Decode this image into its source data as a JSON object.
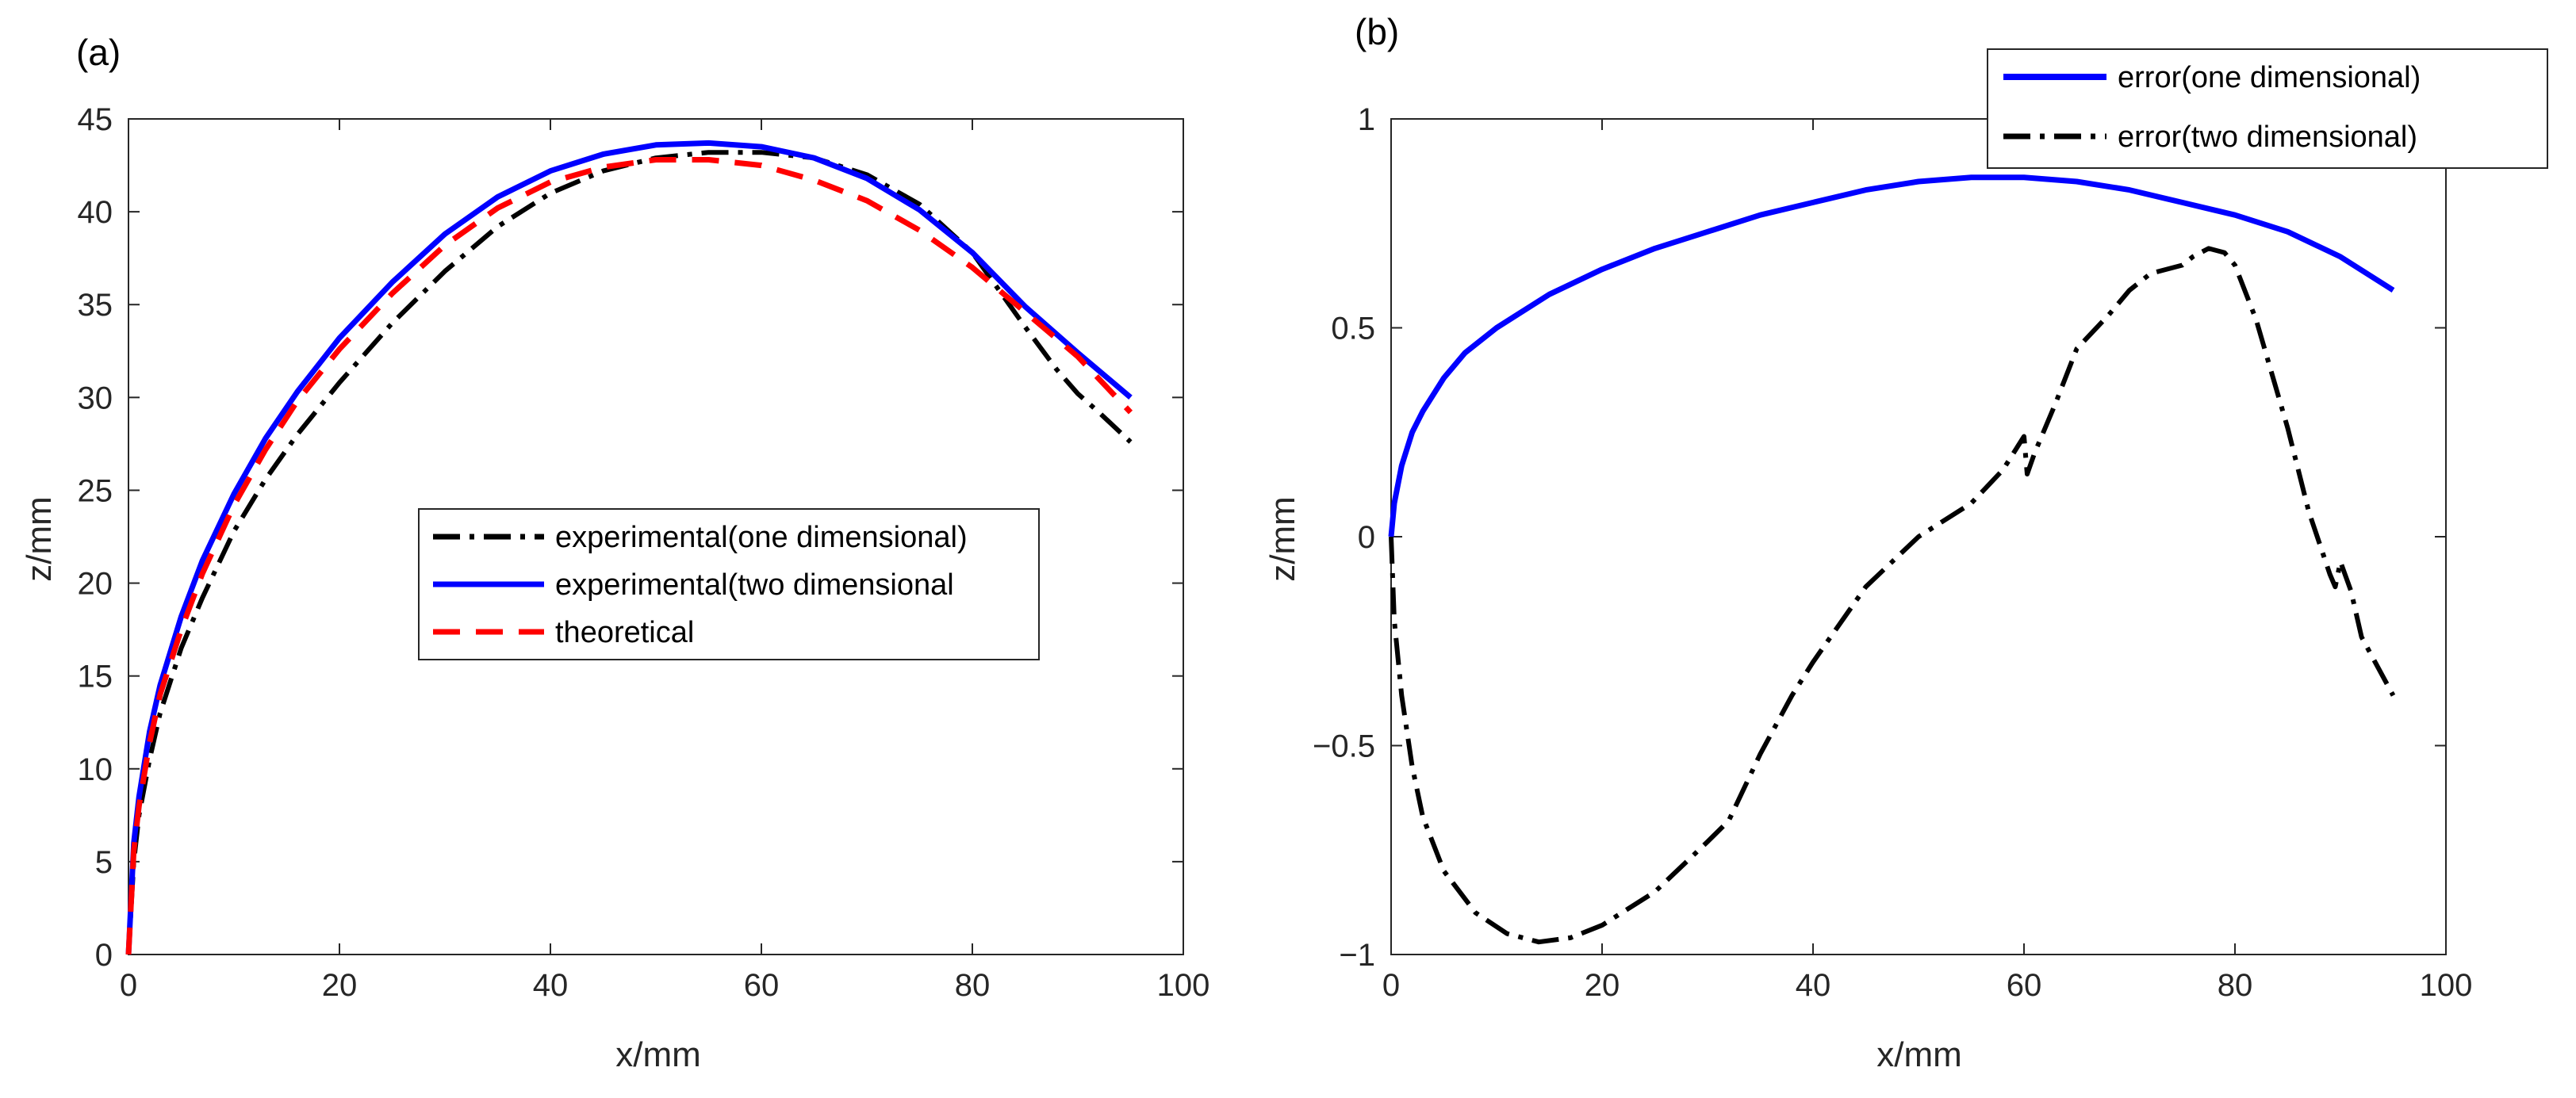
{
  "colors": {
    "blue": "#0000ff",
    "black": "#000000",
    "red": "#ff0000",
    "axis": "#262626"
  },
  "chart_data": [
    {
      "type": "line",
      "panel_label": "(a)",
      "xlabel": "x/mm",
      "ylabel": "z/mm",
      "xlim": [
        0,
        100
      ],
      "ylim": [
        0,
        45
      ],
      "xticks": [
        0,
        20,
        40,
        60,
        80,
        100
      ],
      "yticks": [
        0,
        5,
        10,
        15,
        20,
        25,
        30,
        35,
        40,
        45
      ],
      "xtick_labels": [
        "0",
        "20",
        "40",
        "60",
        "80",
        "100"
      ],
      "ytick_labels": [
        "0",
        "5",
        "10",
        "15",
        "20",
        "25",
        "30",
        "35",
        "40",
        "45"
      ],
      "legend_position": "center-right",
      "series": [
        {
          "name": "experimental(one dimensional)",
          "style": "dashdot",
          "color": "#000000",
          "x": [
            0,
            0.5,
            1,
            2,
            3,
            5,
            7,
            10,
            13,
            16,
            20,
            25,
            30,
            35,
            40,
            45,
            50,
            55,
            60,
            65,
            70,
            75,
            80,
            85,
            88,
            90,
            92,
            95
          ],
          "y": [
            0,
            5,
            7.5,
            10.5,
            13,
            16.5,
            19.2,
            22.8,
            25.6,
            28,
            30.8,
            34,
            36.8,
            39.2,
            41,
            42.2,
            42.9,
            43.2,
            43.2,
            42.9,
            42,
            40.4,
            37.8,
            33.8,
            31.5,
            30.2,
            29.2,
            27.6
          ]
        },
        {
          "name": "experimental(two dimensional",
          "style": "solid",
          "color": "#0000ff",
          "x": [
            0,
            0.5,
            1,
            2,
            3,
            5,
            7,
            10,
            13,
            16,
            20,
            25,
            30,
            35,
            40,
            45,
            50,
            55,
            60,
            65,
            70,
            75,
            80,
            85,
            90,
            95
          ],
          "y": [
            0,
            6,
            8.5,
            12,
            14.5,
            18.2,
            21.2,
            24.8,
            27.8,
            30.3,
            33.2,
            36.2,
            38.8,
            40.8,
            42.2,
            43.1,
            43.6,
            43.7,
            43.5,
            42.9,
            41.8,
            40.1,
            37.8,
            34.9,
            32.4,
            30
          ]
        },
        {
          "name": "theoretical",
          "style": "dashed",
          "color": "#ff0000",
          "x": [
            0,
            0.5,
            1,
            2,
            3,
            5,
            7,
            10,
            13,
            16,
            20,
            25,
            30,
            35,
            40,
            45,
            50,
            55,
            60,
            65,
            70,
            75,
            80,
            85,
            90,
            95
          ],
          "y": [
            0,
            5.6,
            8,
            11.4,
            14,
            17.5,
            20.5,
            24.2,
            27.2,
            29.8,
            32.6,
            35.6,
            38.2,
            40.2,
            41.6,
            42.4,
            42.8,
            42.8,
            42.5,
            41.7,
            40.6,
            39,
            37,
            34.6,
            32.2,
            29.2
          ]
        }
      ]
    },
    {
      "type": "line",
      "panel_label": "(b)",
      "xlabel": "x/mm",
      "ylabel": "z/mm",
      "xlim": [
        0,
        100
      ],
      "ylim": [
        -1,
        1
      ],
      "xticks": [
        0,
        20,
        40,
        60,
        80,
        100
      ],
      "yticks": [
        -1,
        -0.5,
        0,
        0.5,
        1
      ],
      "xtick_labels": [
        "0",
        "20",
        "40",
        "60",
        "80",
        "100"
      ],
      "ytick_labels": [
        "−1",
        "−0.5",
        "0",
        "0.5",
        "1"
      ],
      "legend_position": "top-right",
      "series": [
        {
          "name": "error(one dimensional)",
          "style": "solid",
          "color": "#0000ff",
          "x": [
            0,
            0.3,
            1,
            2,
            3,
            5,
            7,
            10,
            15,
            20,
            25,
            30,
            35,
            40,
            45,
            50,
            55,
            60,
            65,
            70,
            75,
            80,
            85,
            90,
            95
          ],
          "y": [
            0,
            0.08,
            0.17,
            0.25,
            0.3,
            0.38,
            0.44,
            0.5,
            0.58,
            0.64,
            0.69,
            0.73,
            0.77,
            0.8,
            0.83,
            0.85,
            0.86,
            0.86,
            0.85,
            0.83,
            0.8,
            0.77,
            0.73,
            0.67,
            0.59
          ]
        },
        {
          "name": "error(two dimensional)",
          "style": "dashdot",
          "color": "#000000",
          "x": [
            0,
            0.3,
            1,
            2,
            3,
            5,
            8,
            11,
            14,
            17,
            20,
            25,
            30,
            32,
            35,
            38,
            40,
            45,
            50,
            55,
            58,
            60,
            60.3,
            61,
            63,
            65,
            68,
            70,
            72,
            75,
            76,
            77.5,
            79,
            80,
            82,
            85,
            87,
            89,
            89.5,
            90,
            91,
            92,
            95
          ],
          "y": [
            0,
            -0.2,
            -0.38,
            -0.55,
            -0.67,
            -0.8,
            -0.9,
            -0.95,
            -0.97,
            -0.96,
            -0.93,
            -0.85,
            -0.73,
            -0.68,
            -0.52,
            -0.38,
            -0.3,
            -0.12,
            0.0,
            0.08,
            0.16,
            0.24,
            0.15,
            0.2,
            0.32,
            0.45,
            0.53,
            0.59,
            0.63,
            0.65,
            0.67,
            0.69,
            0.68,
            0.65,
            0.52,
            0.26,
            0.06,
            -0.09,
            -0.12,
            -0.06,
            -0.13,
            -0.24,
            -0.38
          ]
        }
      ]
    }
  ]
}
